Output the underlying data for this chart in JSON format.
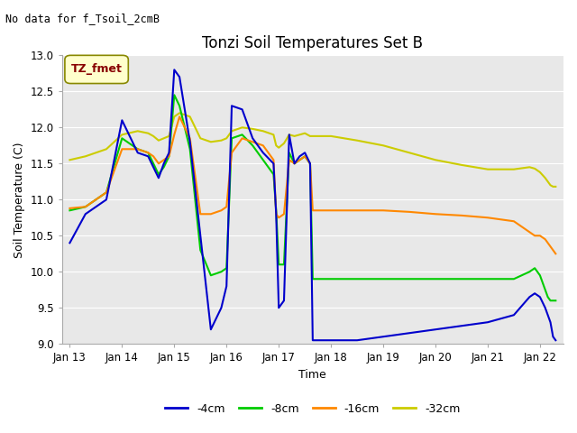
{
  "title": "Tonzi Soil Temperatures Set B",
  "subtitle": "No data for f_Tsoil_2cmB",
  "xlabel": "Time",
  "ylabel": "Soil Temperature (C)",
  "ylim": [
    9.0,
    13.0
  ],
  "yticks": [
    9.0,
    9.5,
    10.0,
    10.5,
    11.0,
    11.5,
    12.0,
    12.5,
    13.0
  ],
  "background_color": "#e8e8e8",
  "legend_label": "TZ_fmet",
  "legend_box_color": "#ffffcc",
  "legend_box_border": "#888800",
  "legend_text_color": "#880000",
  "series_colors": {
    "4cm": "#0000cc",
    "8cm": "#00cc00",
    "16cm": "#ff8800",
    "32cm": "#cccc00"
  },
  "series_labels": [
    "-4cm",
    "-8cm",
    "-16cm",
    "-32cm"
  ],
  "xtick_labels": [
    "Jan 13",
    "Jan 14",
    "Jan 15",
    "Jan 16",
    "Jan 17",
    "Jan 18",
    "Jan 19",
    "Jan 20",
    "Jan 21",
    "Jan 22"
  ],
  "series_4cm": [
    [
      0.0,
      10.4
    ],
    [
      0.3,
      10.8
    ],
    [
      0.5,
      10.9
    ],
    [
      0.7,
      11.0
    ],
    [
      1.0,
      12.1
    ],
    [
      1.3,
      11.65
    ],
    [
      1.5,
      11.6
    ],
    [
      1.6,
      11.45
    ],
    [
      1.7,
      11.3
    ],
    [
      1.8,
      11.5
    ],
    [
      1.9,
      11.65
    ],
    [
      2.0,
      12.8
    ],
    [
      2.1,
      12.7
    ],
    [
      2.3,
      11.8
    ],
    [
      2.5,
      10.5
    ],
    [
      2.7,
      9.2
    ],
    [
      2.9,
      9.5
    ],
    [
      3.0,
      9.8
    ],
    [
      3.1,
      12.3
    ],
    [
      3.3,
      12.25
    ],
    [
      3.5,
      11.85
    ],
    [
      3.7,
      11.65
    ],
    [
      3.9,
      11.5
    ],
    [
      3.95,
      10.8
    ],
    [
      4.0,
      9.5
    ],
    [
      4.1,
      9.6
    ],
    [
      4.2,
      11.9
    ],
    [
      4.3,
      11.5
    ],
    [
      4.4,
      11.6
    ],
    [
      4.5,
      11.65
    ],
    [
      4.6,
      11.5
    ],
    [
      4.65,
      9.05
    ],
    [
      4.7,
      9.05
    ],
    [
      5.0,
      9.05
    ],
    [
      5.5,
      9.05
    ],
    [
      6.0,
      9.1
    ],
    [
      6.5,
      9.15
    ],
    [
      7.0,
      9.2
    ],
    [
      7.5,
      9.25
    ],
    [
      8.0,
      9.3
    ],
    [
      8.5,
      9.4
    ],
    [
      8.8,
      9.65
    ],
    [
      8.9,
      9.7
    ],
    [
      9.0,
      9.65
    ],
    [
      9.1,
      9.5
    ],
    [
      9.15,
      9.4
    ],
    [
      9.2,
      9.3
    ],
    [
      9.25,
      9.1
    ],
    [
      9.3,
      9.05
    ]
  ],
  "series_8cm": [
    [
      0.0,
      10.85
    ],
    [
      0.3,
      10.9
    ],
    [
      0.5,
      11.0
    ],
    [
      0.7,
      11.1
    ],
    [
      1.0,
      11.85
    ],
    [
      1.3,
      11.7
    ],
    [
      1.5,
      11.65
    ],
    [
      1.6,
      11.5
    ],
    [
      1.7,
      11.35
    ],
    [
      1.8,
      11.45
    ],
    [
      1.9,
      11.6
    ],
    [
      2.0,
      12.45
    ],
    [
      2.1,
      12.3
    ],
    [
      2.3,
      11.7
    ],
    [
      2.5,
      10.3
    ],
    [
      2.7,
      9.95
    ],
    [
      2.9,
      10.0
    ],
    [
      3.0,
      10.05
    ],
    [
      3.1,
      11.85
    ],
    [
      3.3,
      11.9
    ],
    [
      3.5,
      11.75
    ],
    [
      3.7,
      11.55
    ],
    [
      3.9,
      11.35
    ],
    [
      3.95,
      10.85
    ],
    [
      4.0,
      10.1
    ],
    [
      4.1,
      10.1
    ],
    [
      4.2,
      11.65
    ],
    [
      4.3,
      11.5
    ],
    [
      4.4,
      11.55
    ],
    [
      4.5,
      11.6
    ],
    [
      4.6,
      11.5
    ],
    [
      4.65,
      9.9
    ],
    [
      4.7,
      9.9
    ],
    [
      5.0,
      9.9
    ],
    [
      5.5,
      9.9
    ],
    [
      6.0,
      9.9
    ],
    [
      6.5,
      9.9
    ],
    [
      7.0,
      9.9
    ],
    [
      7.5,
      9.9
    ],
    [
      8.0,
      9.9
    ],
    [
      8.5,
      9.9
    ],
    [
      8.8,
      10.0
    ],
    [
      8.9,
      10.05
    ],
    [
      9.0,
      9.95
    ],
    [
      9.1,
      9.75
    ],
    [
      9.15,
      9.65
    ],
    [
      9.2,
      9.6
    ],
    [
      9.25,
      9.6
    ],
    [
      9.3,
      9.6
    ]
  ],
  "series_16cm": [
    [
      0.0,
      10.88
    ],
    [
      0.3,
      10.9
    ],
    [
      0.5,
      11.0
    ],
    [
      0.7,
      11.1
    ],
    [
      1.0,
      11.7
    ],
    [
      1.3,
      11.7
    ],
    [
      1.5,
      11.65
    ],
    [
      1.6,
      11.6
    ],
    [
      1.7,
      11.5
    ],
    [
      1.8,
      11.55
    ],
    [
      1.9,
      11.6
    ],
    [
      2.0,
      11.9
    ],
    [
      2.1,
      12.15
    ],
    [
      2.3,
      11.85
    ],
    [
      2.5,
      10.8
    ],
    [
      2.7,
      10.8
    ],
    [
      2.9,
      10.85
    ],
    [
      3.0,
      10.9
    ],
    [
      3.1,
      11.65
    ],
    [
      3.3,
      11.85
    ],
    [
      3.5,
      11.8
    ],
    [
      3.7,
      11.75
    ],
    [
      3.9,
      11.55
    ],
    [
      3.95,
      10.8
    ],
    [
      4.0,
      10.75
    ],
    [
      4.1,
      10.8
    ],
    [
      4.2,
      11.55
    ],
    [
      4.3,
      11.5
    ],
    [
      4.4,
      11.55
    ],
    [
      4.5,
      11.6
    ],
    [
      4.6,
      11.5
    ],
    [
      4.65,
      10.85
    ],
    [
      4.7,
      10.85
    ],
    [
      5.0,
      10.85
    ],
    [
      5.5,
      10.85
    ],
    [
      6.0,
      10.85
    ],
    [
      6.5,
      10.83
    ],
    [
      7.0,
      10.8
    ],
    [
      7.5,
      10.78
    ],
    [
      8.0,
      10.75
    ],
    [
      8.5,
      10.7
    ],
    [
      8.8,
      10.55
    ],
    [
      8.9,
      10.5
    ],
    [
      9.0,
      10.5
    ],
    [
      9.1,
      10.45
    ],
    [
      9.15,
      10.4
    ],
    [
      9.2,
      10.35
    ],
    [
      9.25,
      10.3
    ],
    [
      9.3,
      10.25
    ]
  ],
  "series_32cm": [
    [
      0.0,
      11.55
    ],
    [
      0.3,
      11.6
    ],
    [
      0.5,
      11.65
    ],
    [
      0.7,
      11.7
    ],
    [
      1.0,
      11.9
    ],
    [
      1.3,
      11.95
    ],
    [
      1.5,
      11.92
    ],
    [
      1.6,
      11.88
    ],
    [
      1.7,
      11.82
    ],
    [
      1.8,
      11.85
    ],
    [
      1.9,
      11.88
    ],
    [
      2.0,
      12.15
    ],
    [
      2.1,
      12.2
    ],
    [
      2.3,
      12.15
    ],
    [
      2.5,
      11.85
    ],
    [
      2.7,
      11.8
    ],
    [
      2.9,
      11.82
    ],
    [
      3.0,
      11.85
    ],
    [
      3.1,
      11.95
    ],
    [
      3.3,
      12.0
    ],
    [
      3.5,
      11.98
    ],
    [
      3.7,
      11.95
    ],
    [
      3.9,
      11.9
    ],
    [
      3.95,
      11.75
    ],
    [
      4.0,
      11.72
    ],
    [
      4.1,
      11.78
    ],
    [
      4.2,
      11.9
    ],
    [
      4.3,
      11.88
    ],
    [
      4.4,
      11.9
    ],
    [
      4.5,
      11.92
    ],
    [
      4.6,
      11.88
    ],
    [
      4.65,
      11.88
    ],
    [
      4.7,
      11.88
    ],
    [
      5.0,
      11.88
    ],
    [
      5.5,
      11.82
    ],
    [
      6.0,
      11.75
    ],
    [
      6.5,
      11.65
    ],
    [
      7.0,
      11.55
    ],
    [
      7.5,
      11.48
    ],
    [
      8.0,
      11.42
    ],
    [
      8.5,
      11.42
    ],
    [
      8.8,
      11.45
    ],
    [
      8.9,
      11.43
    ],
    [
      9.0,
      11.38
    ],
    [
      9.1,
      11.3
    ],
    [
      9.15,
      11.25
    ],
    [
      9.2,
      11.2
    ],
    [
      9.25,
      11.18
    ],
    [
      9.3,
      11.18
    ]
  ]
}
